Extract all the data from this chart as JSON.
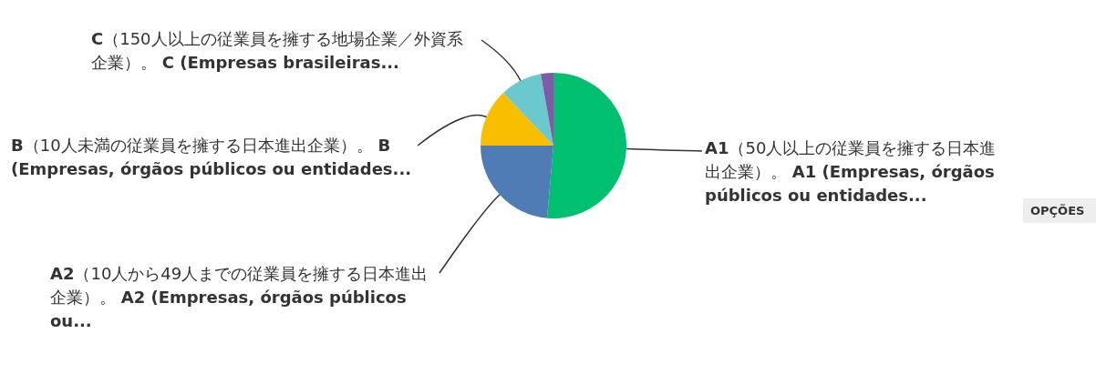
{
  "chart_data": {
    "type": "pie",
    "categories": [
      "**A1**（50人以上の従業員を擁する日本進出企業）。 **A1 (Empresas, órgãos públicos ou entidades...**",
      "**A2**（10人から49人までの従業員を擁する日本進出企業）。 **A2 (Empresas, órgãos públicos ou...**",
      "**B**（10人未満の従業員を擁する日本進出企業）。 **B (Empresas, órgãos públicos ou entidades...**",
      "**C**（150人以上の従業員を擁する地場企業／外資系企業）。 **C (Empresas brasileiras...**",
      null
    ],
    "values": [
      51.4,
      23.6,
      12.9,
      9.3,
      2.8
    ],
    "colors": [
      "#00bf6f",
      "#507cb6",
      "#f9be00",
      "#6bc8cd",
      "#7d5ba6"
    ],
    "annotations": [
      "OPÇÕES"
    ]
  }
}
